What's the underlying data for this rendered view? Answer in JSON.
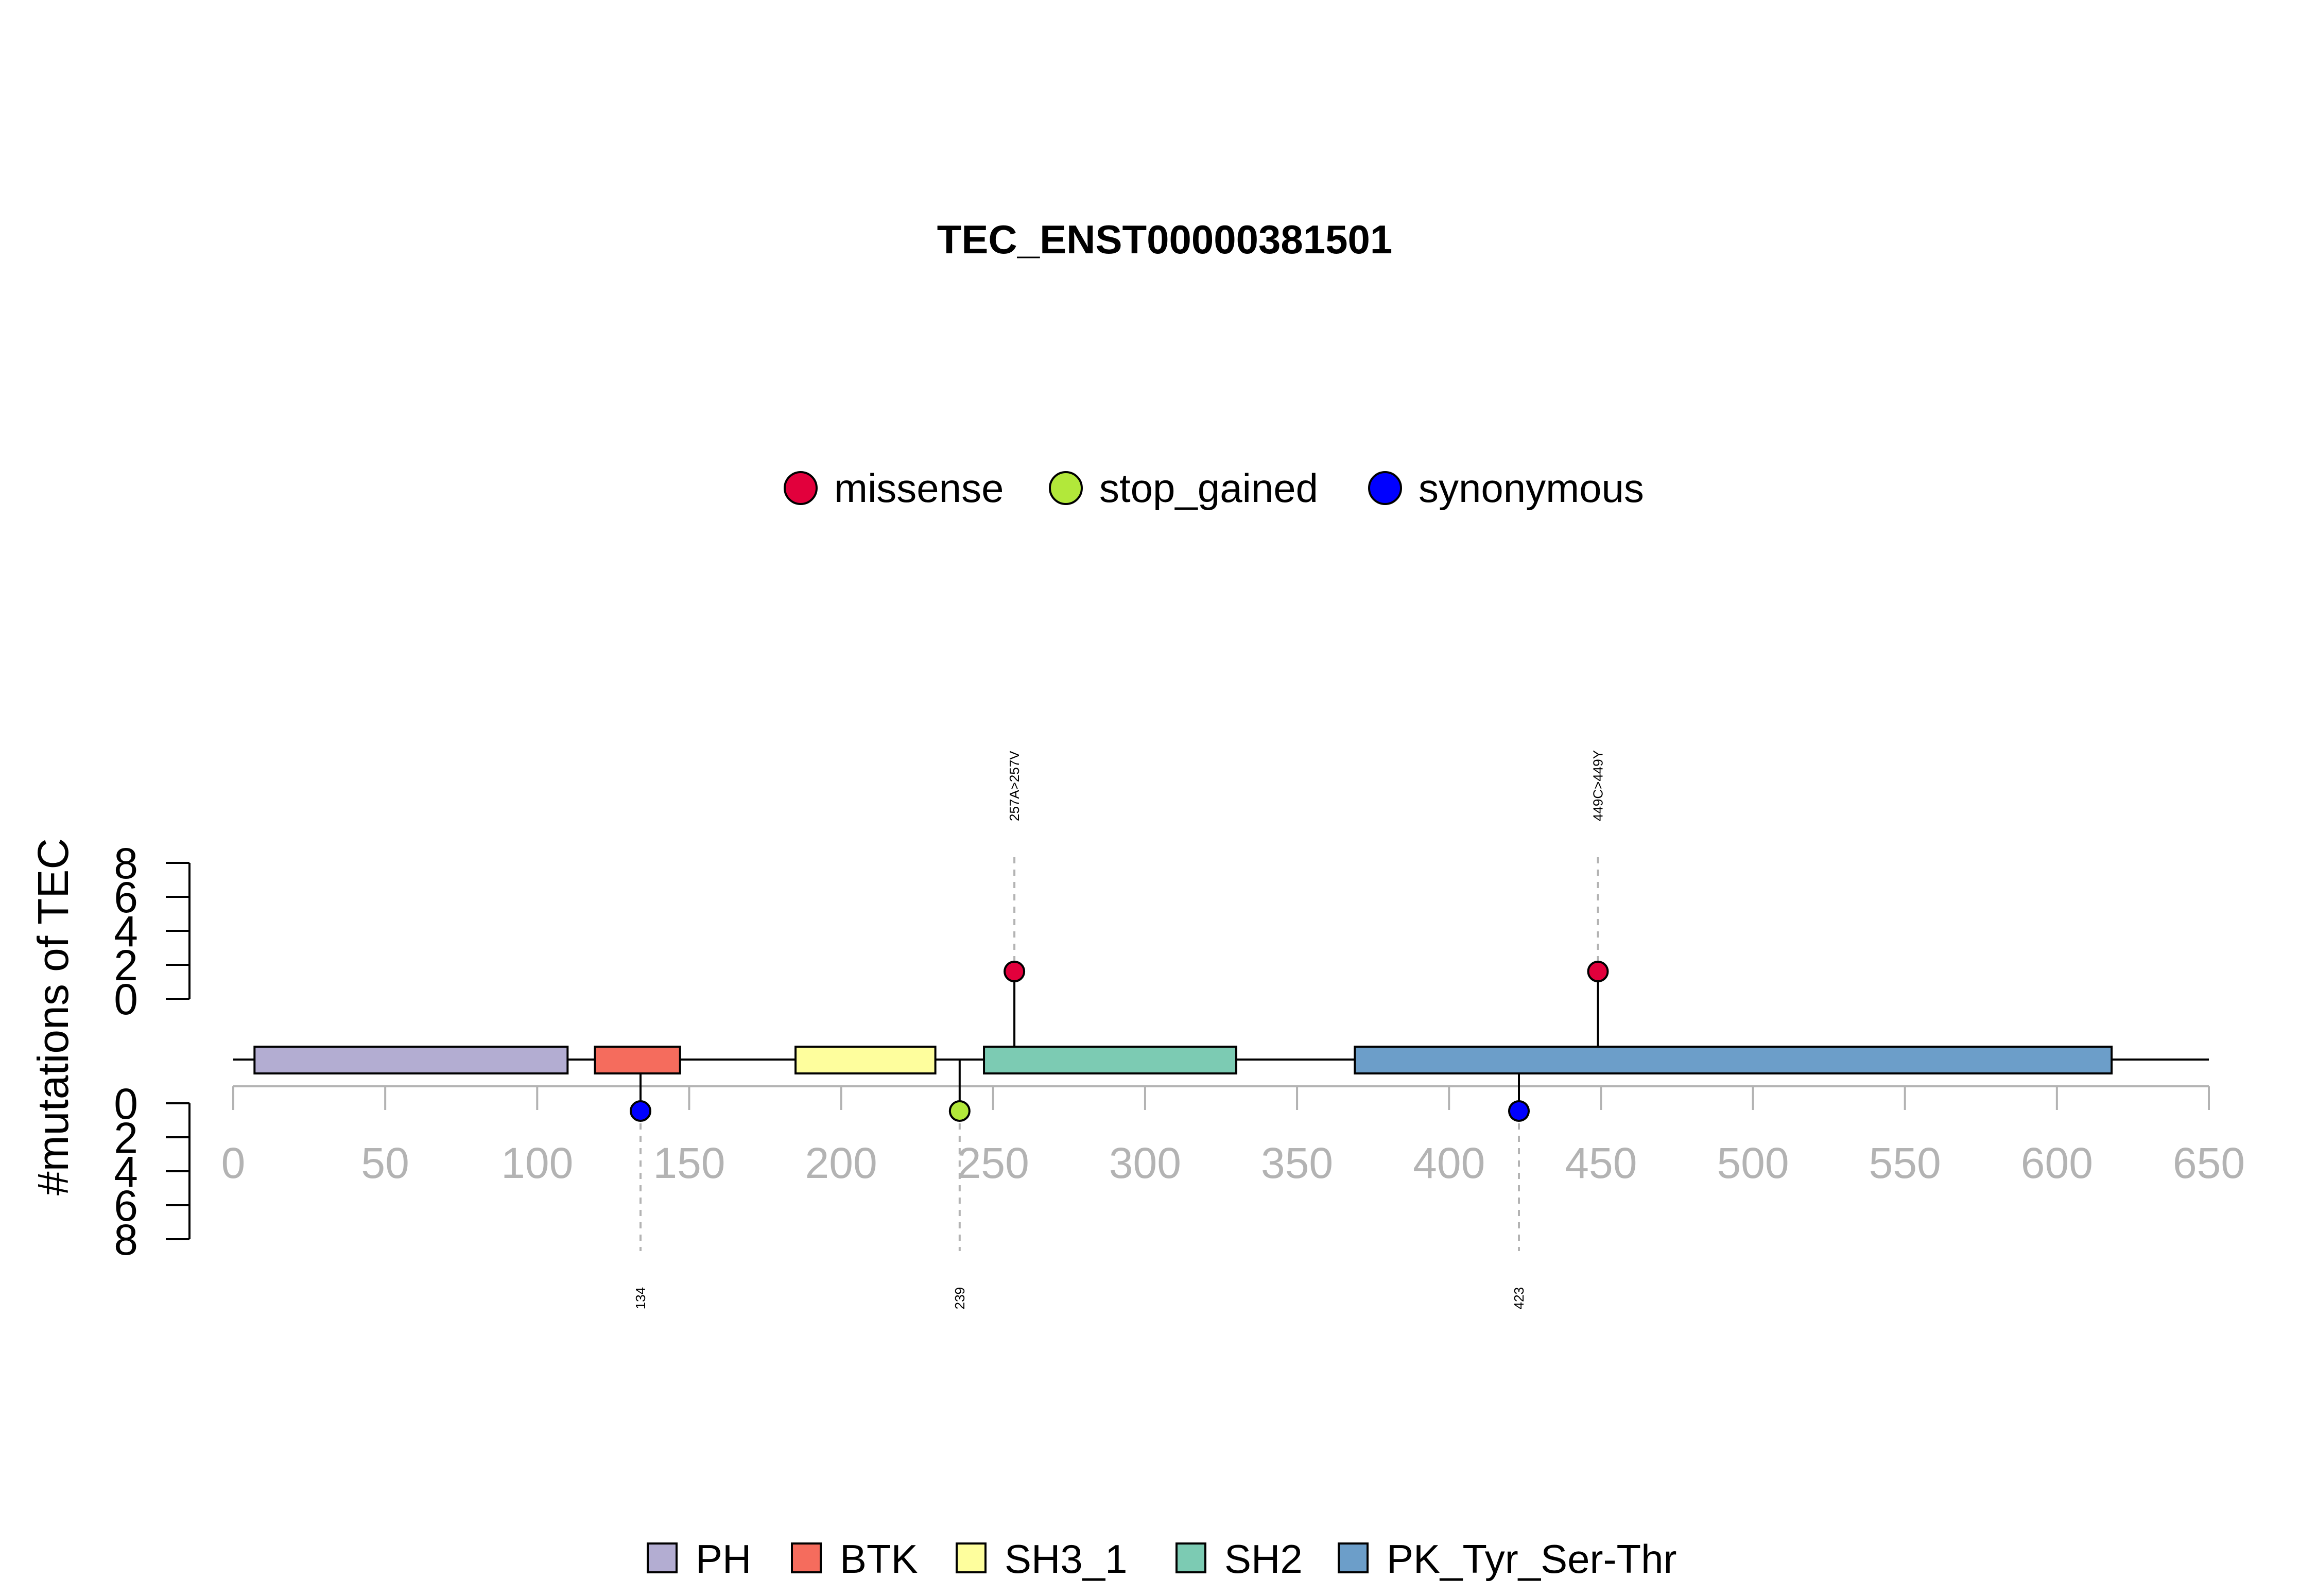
{
  "chart_data": {
    "type": "lollipop",
    "title": "TEC_ENST00000381501",
    "ylabel": "#mutations of TEC",
    "xlim": [
      0,
      650
    ],
    "x_ticks": [
      0,
      50,
      100,
      150,
      200,
      250,
      300,
      350,
      400,
      450,
      500,
      550,
      600,
      650
    ],
    "x_tick_labels": [
      "0",
      "50",
      "100",
      "150",
      "200",
      "250",
      "300",
      "350",
      "400",
      "450",
      "500",
      "550",
      "600",
      "650"
    ],
    "y_ticks": [
      0,
      2,
      4,
      6,
      8
    ],
    "y_tick_labels": [
      "0",
      "2",
      "4",
      "6",
      "8"
    ],
    "ylim": [
      0,
      8
    ],
    "mutation_legend": [
      {
        "label": "missense",
        "color": "#e2003c"
      },
      {
        "label": "stop_gained",
        "color": "#b2e83a"
      },
      {
        "label": "synonymous",
        "color": "#0000ff"
      }
    ],
    "domain_legend": [
      {
        "label": "PH",
        "color": "#b3add2"
      },
      {
        "label": "BTK",
        "color": "#f56c5d"
      },
      {
        "label": "SH3_1",
        "color": "#fefe9d"
      },
      {
        "label": "SH2",
        "color": "#7ccbb3"
      },
      {
        "label": "PK_Tyr_Ser-Thr",
        "color": "#6c9ec9"
      }
    ],
    "domains": [
      {
        "name": "PH",
        "start": 7,
        "end": 110,
        "color": "#b3add2"
      },
      {
        "name": "BTK",
        "start": 119,
        "end": 147,
        "color": "#f56c5d"
      },
      {
        "name": "SH3_1",
        "start": 185,
        "end": 231,
        "color": "#fefe9d"
      },
      {
        "name": "SH2",
        "start": 247,
        "end": 330,
        "color": "#7ccbb3"
      },
      {
        "name": "PK_Tyr_Ser-Thr",
        "start": 369,
        "end": 618,
        "color": "#6c9ec9"
      }
    ],
    "mutations_top": [
      {
        "position": 257,
        "count": 1,
        "type": "missense",
        "label": "257A>257V",
        "color": "#e2003c"
      },
      {
        "position": 449,
        "count": 1,
        "type": "missense",
        "label": "449C>449Y",
        "color": "#e2003c"
      }
    ],
    "mutations_bottom": [
      {
        "position": 134,
        "count": 1,
        "type": "synonymous",
        "label": "134",
        "color": "#0000ff"
      },
      {
        "position": 239,
        "count": 1,
        "type": "stop_gained",
        "label": "239",
        "color": "#b2e83a"
      },
      {
        "position": 423,
        "count": 1,
        "type": "synonymous",
        "label": "423",
        "color": "#0000ff"
      }
    ]
  }
}
